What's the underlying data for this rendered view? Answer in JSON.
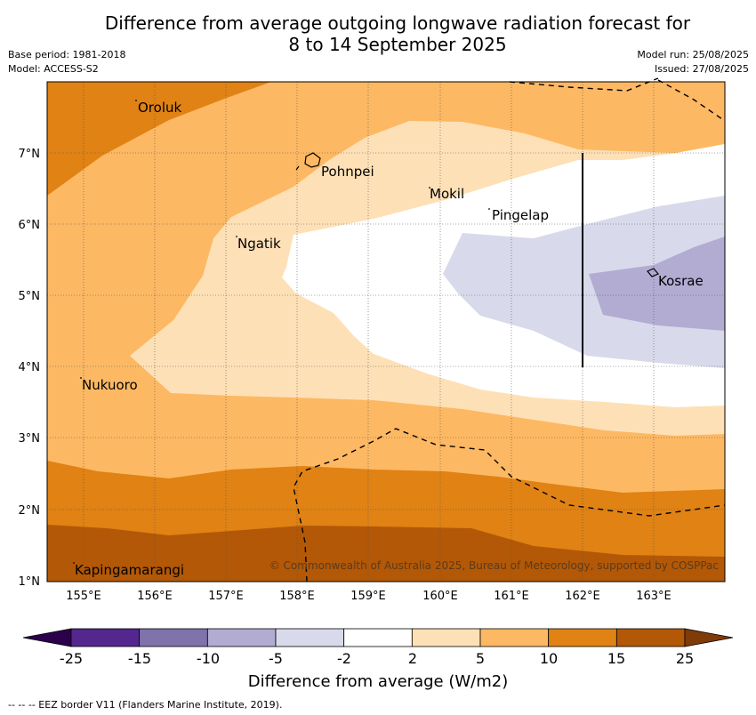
{
  "title_line1": "Difference from average outgoing longwave radiation forecast for",
  "title_line2": "8 to 14 September 2025",
  "base_period": "Base period: 1981-2018",
  "model": "Model: ACCESS-S2",
  "model_run": "Model run: 25/08/2025",
  "issued": "Issued: 27/08/2025",
  "map": {
    "lon_range": [
      154.5,
      164.0
    ],
    "lat_range": [
      1.0,
      8.0
    ],
    "lon_ticks": [
      "155°E",
      "156°E",
      "157°E",
      "158°E",
      "159°E",
      "160°E",
      "161°E",
      "162°E",
      "163°E"
    ],
    "lat_ticks": [
      "1°N",
      "2°N",
      "3°N",
      "4°N",
      "5°N",
      "6°N",
      "7°N"
    ],
    "places": [
      {
        "name": "Oroluk",
        "lon": 155.5,
        "lat": 7.65
      },
      {
        "name": "Pohnpei",
        "lon": 158.2,
        "lat": 6.9
      },
      {
        "name": "Mokil",
        "lon": 159.8,
        "lat": 6.7
      },
      {
        "name": "Pingelap",
        "lon": 160.7,
        "lat": 6.2
      },
      {
        "name": "Ngatik",
        "lon": 157.2,
        "lat": 5.8
      },
      {
        "name": "Kosrae",
        "lon": 163.0,
        "lat": 5.3
      },
      {
        "name": "Nukuoro",
        "lon": 154.95,
        "lat": 3.85
      },
      {
        "name": "Kapingamarangi",
        "lon": 154.9,
        "lat": 1.1
      }
    ],
    "copyright": "© Commonwealth of Australia 2025, Bureau of Meteorology, supported by COSPPac",
    "eez_style": "dashed black line",
    "boundary_line": {
      "lon": 162.0,
      "lat_from": 4.0,
      "lat_to": 7.0
    }
  },
  "colorbar": {
    "ticks": [
      "-25",
      "-15",
      "-10",
      "-5",
      "-2",
      "2",
      "5",
      "10",
      "15",
      "25"
    ],
    "colors": [
      "#54278f",
      "#8073ac",
      "#b2abd2",
      "#d8daeb",
      "#ffffff",
      "#fee0b6",
      "#fdb863",
      "#e08214",
      "#b35806"
    ],
    "under_color": "#2d004b",
    "over_color": "#7f3b08",
    "label": "Difference from average (W/m2)"
  },
  "footnote": "--  --  -- EEZ border V11 (Flanders Marine Institute, 2019)."
}
